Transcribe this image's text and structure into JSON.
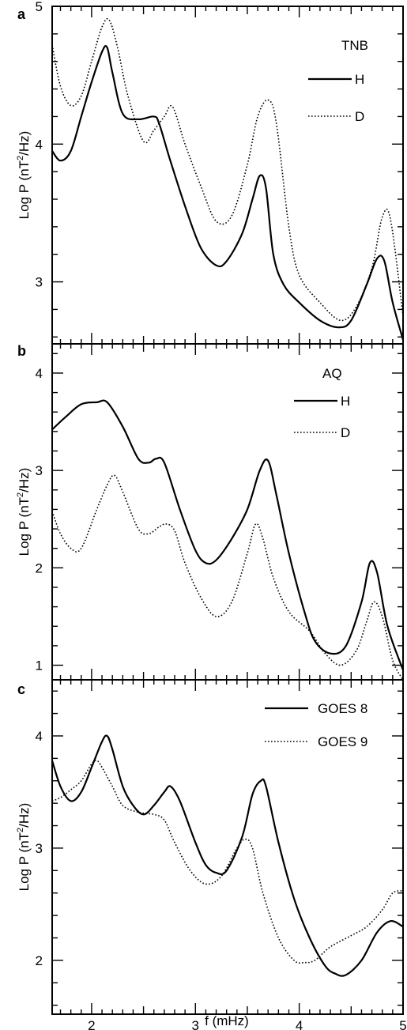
{
  "figure": {
    "xlabel": "f (mHz)",
    "xticks": [
      "2",
      "3",
      "4",
      "5"
    ]
  },
  "chart_data": [
    {
      "type": "line",
      "panel_label": "a",
      "ylabel": "Log P (nT²/Hz)",
      "ylabel_main": "Log P (nT",
      "ylabel_sup": "2",
      "ylabel_tail": "/Hz)",
      "xlim": [
        1.62,
        5.0
      ],
      "ylim": [
        2.55,
        5.0
      ],
      "yticks": [
        "3",
        "4",
        "5"
      ],
      "legend": {
        "title": "TNB",
        "position": "top-right"
      },
      "series": [
        {
          "name": "H",
          "style": "solid",
          "x": [
            1.62,
            1.7,
            1.8,
            1.9,
            2.0,
            2.1,
            2.15,
            2.2,
            2.3,
            2.45,
            2.6,
            2.65,
            2.75,
            2.9,
            3.05,
            3.2,
            3.3,
            3.45,
            3.55,
            3.62,
            3.68,
            3.75,
            3.85,
            4.0,
            4.2,
            4.38,
            4.5,
            4.65,
            4.75,
            4.82,
            4.9,
            5.0
          ],
          "y": [
            3.95,
            3.88,
            3.95,
            4.2,
            4.45,
            4.67,
            4.7,
            4.52,
            4.22,
            4.18,
            4.2,
            4.15,
            3.9,
            3.55,
            3.25,
            3.12,
            3.15,
            3.35,
            3.6,
            3.77,
            3.68,
            3.2,
            2.98,
            2.85,
            2.72,
            2.67,
            2.72,
            2.98,
            3.17,
            3.15,
            2.85,
            2.58
          ]
        },
        {
          "name": "D",
          "style": "dotted",
          "x": [
            1.62,
            1.7,
            1.8,
            1.9,
            2.0,
            2.1,
            2.17,
            2.25,
            2.35,
            2.5,
            2.6,
            2.7,
            2.78,
            2.9,
            3.05,
            3.2,
            3.35,
            3.5,
            3.6,
            3.7,
            3.78,
            3.9,
            4.0,
            4.2,
            4.4,
            4.55,
            4.7,
            4.8,
            4.88,
            5.0
          ],
          "y": [
            4.72,
            4.42,
            4.28,
            4.35,
            4.6,
            4.85,
            4.9,
            4.7,
            4.35,
            4.02,
            4.1,
            4.2,
            4.27,
            4.0,
            3.7,
            3.44,
            3.48,
            3.85,
            4.2,
            4.32,
            4.15,
            3.4,
            3.05,
            2.85,
            2.72,
            2.82,
            3.1,
            3.47,
            3.45,
            2.75
          ]
        }
      ]
    },
    {
      "type": "line",
      "panel_label": "b",
      "ylabel": "Log P (nT²/Hz)",
      "ylabel_main": "Log P (nT",
      "ylabel_sup": "2",
      "ylabel_tail": "/Hz)",
      "xlim": [
        1.62,
        5.0
      ],
      "ylim": [
        0.85,
        4.3
      ],
      "yticks": [
        "1",
        "2",
        "3",
        "4"
      ],
      "legend": {
        "title": "AQ",
        "position": "top-right"
      },
      "series": [
        {
          "name": "H",
          "style": "solid",
          "x": [
            1.62,
            1.75,
            1.9,
            2.05,
            2.15,
            2.3,
            2.45,
            2.55,
            2.62,
            2.7,
            2.85,
            3.0,
            3.1,
            3.2,
            3.35,
            3.5,
            3.62,
            3.7,
            3.78,
            3.9,
            4.05,
            4.15,
            4.3,
            4.45,
            4.6,
            4.68,
            4.75,
            4.85,
            5.0
          ],
          "y": [
            3.42,
            3.55,
            3.68,
            3.7,
            3.7,
            3.45,
            3.12,
            3.08,
            3.12,
            3.08,
            2.6,
            2.18,
            2.05,
            2.08,
            2.3,
            2.6,
            3.0,
            3.1,
            2.75,
            2.15,
            1.55,
            1.25,
            1.12,
            1.2,
            1.65,
            2.05,
            1.95,
            1.4,
            0.95
          ]
        },
        {
          "name": "D",
          "style": "dotted",
          "x": [
            1.62,
            1.7,
            1.8,
            1.9,
            2.05,
            2.15,
            2.22,
            2.3,
            2.45,
            2.55,
            2.65,
            2.72,
            2.8,
            2.9,
            3.05,
            3.2,
            3.35,
            3.5,
            3.58,
            3.65,
            3.75,
            3.9,
            4.1,
            4.25,
            4.4,
            4.55,
            4.65,
            4.72,
            4.8,
            4.9,
            5.0
          ],
          "y": [
            2.58,
            2.35,
            2.2,
            2.2,
            2.6,
            2.85,
            2.95,
            2.78,
            2.4,
            2.35,
            2.42,
            2.45,
            2.38,
            2.05,
            1.7,
            1.5,
            1.65,
            2.15,
            2.45,
            2.3,
            1.9,
            1.55,
            1.35,
            1.12,
            1.0,
            1.15,
            1.45,
            1.65,
            1.5,
            1.05,
            0.85
          ]
        }
      ]
    },
    {
      "type": "line",
      "panel_label": "c",
      "ylabel": "Log P (nT²/Hz)",
      "ylabel_main": "Log P (nT",
      "ylabel_sup": "2",
      "ylabel_tail": "/Hz)",
      "xlim": [
        1.62,
        5.0
      ],
      "ylim": [
        1.52,
        4.5
      ],
      "yticks": [
        "2",
        "3",
        "4"
      ],
      "legend": {
        "title": "",
        "position": "top-right"
      },
      "series": [
        {
          "name": "GOES 8",
          "style": "solid",
          "x": [
            1.62,
            1.7,
            1.8,
            1.9,
            2.0,
            2.1,
            2.15,
            2.2,
            2.3,
            2.4,
            2.5,
            2.6,
            2.7,
            2.76,
            2.85,
            3.0,
            3.1,
            3.2,
            3.3,
            3.45,
            3.55,
            3.63,
            3.68,
            3.8,
            3.95,
            4.1,
            4.25,
            4.35,
            4.45,
            4.6,
            4.75,
            4.88,
            5.0
          ],
          "y": [
            3.78,
            3.55,
            3.42,
            3.5,
            3.72,
            3.95,
            4.0,
            3.88,
            3.55,
            3.38,
            3.3,
            3.38,
            3.5,
            3.55,
            3.42,
            3.05,
            2.85,
            2.78,
            2.8,
            3.1,
            3.48,
            3.6,
            3.55,
            3.05,
            2.55,
            2.2,
            1.95,
            1.88,
            1.87,
            2.0,
            2.25,
            2.35,
            2.3
          ]
        },
        {
          "name": "GOES 9",
          "style": "dotted",
          "x": [
            1.62,
            1.7,
            1.8,
            1.9,
            2.0,
            2.05,
            2.1,
            2.2,
            2.3,
            2.45,
            2.6,
            2.7,
            2.8,
            2.95,
            3.1,
            3.25,
            3.4,
            3.48,
            3.55,
            3.65,
            3.8,
            3.95,
            4.05,
            4.15,
            4.3,
            4.5,
            4.65,
            4.8,
            4.9,
            5.0
          ],
          "y": [
            3.42,
            3.45,
            3.52,
            3.6,
            3.75,
            3.78,
            3.72,
            3.55,
            3.38,
            3.32,
            3.3,
            3.25,
            3.05,
            2.8,
            2.68,
            2.75,
            3.0,
            3.08,
            3.0,
            2.6,
            2.2,
            2.0,
            1.98,
            2.0,
            2.12,
            2.22,
            2.3,
            2.45,
            2.6,
            2.62
          ]
        }
      ]
    }
  ]
}
